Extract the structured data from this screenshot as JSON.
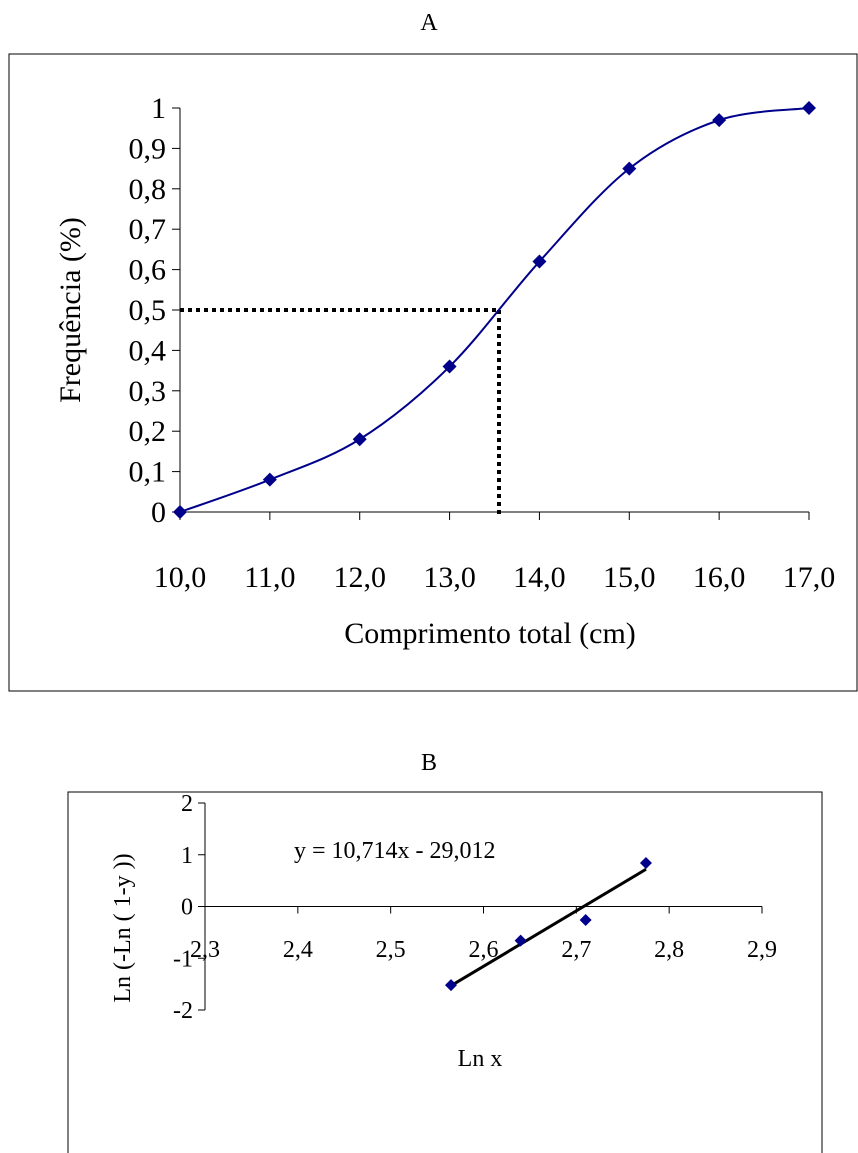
{
  "chart_data": [
    {
      "panel_label": "A",
      "type": "line",
      "xlabel": "Comprimento total (cm)",
      "ylabel": "Frequência (%)",
      "xlim": [
        10,
        17
      ],
      "ylim": [
        0,
        1
      ],
      "x_ticks": [
        "10,0",
        "11,0",
        "12,0",
        "13,0",
        "14,0",
        "15,0",
        "16,0",
        "17,0"
      ],
      "y_ticks": [
        "0",
        "0,1",
        "0,2",
        "0,3",
        "0,4",
        "0,5",
        "0,6",
        "0,7",
        "0,8",
        "0,9",
        "1"
      ],
      "grid": false,
      "series": [
        {
          "x": [
            10,
            11,
            12,
            13,
            14,
            15,
            16,
            17
          ],
          "y": [
            0,
            0.08,
            0.18,
            0.36,
            0.62,
            0.85,
            0.97,
            1.0
          ],
          "color": "#00008B",
          "marker": "diamond",
          "smooth": true
        }
      ],
      "reference_lines": {
        "x": 13.55,
        "y": 0.5,
        "style": "dotted",
        "color": "#000000"
      }
    },
    {
      "panel_label": "B",
      "type": "scatter",
      "xlabel": "Ln x",
      "ylabel": "Ln (-Ln ( 1-y ))",
      "xlim": [
        2.3,
        2.9
      ],
      "ylim": [
        -2,
        2
      ],
      "x_ticks": [
        "2,3",
        "2,4",
        "2,5",
        "2,6",
        "2,7",
        "2,8",
        "2,9"
      ],
      "y_ticks": [
        "-2",
        "-1",
        "0",
        "1",
        "2"
      ],
      "grid": false,
      "series": [
        {
          "x": [
            2.565,
            2.64,
            2.71,
            2.775
          ],
          "y": [
            -1.52,
            -0.66,
            -0.26,
            0.84
          ],
          "color": "#00008B",
          "marker": "diamond"
        }
      ],
      "trendline": {
        "equation": "y = 10,714x - 29,012",
        "slope": 10.714,
        "intercept": -29.012,
        "x_range": [
          2.565,
          2.775
        ],
        "color": "#000000"
      }
    }
  ]
}
